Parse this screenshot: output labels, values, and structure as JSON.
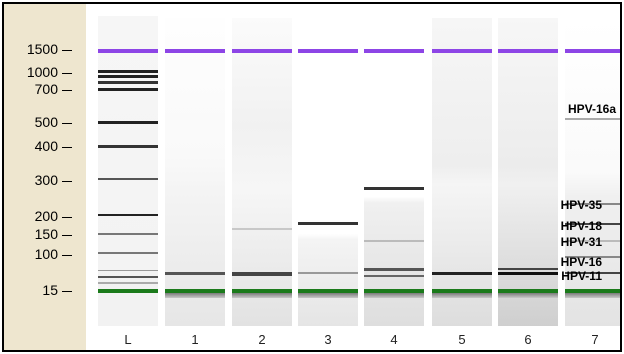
{
  "marker_labels": [
    "1500",
    "1000",
    "700",
    "500",
    "400",
    "300",
    "200",
    "150",
    "100",
    "15"
  ],
  "lane_labels": [
    "L",
    "1",
    "2",
    "3",
    "4",
    "5",
    "6",
    "7"
  ],
  "annotations": [
    "HPV-16a",
    "HPV-35",
    "HPV-18",
    "HPV-31",
    "HPV-16",
    "HPV-11"
  ],
  "colors": {
    "upper_marker": "#8d45e6",
    "lower_marker": "#1b7a1b",
    "marker_panel": "#eee6cf",
    "band": "#1a1a1a"
  }
}
